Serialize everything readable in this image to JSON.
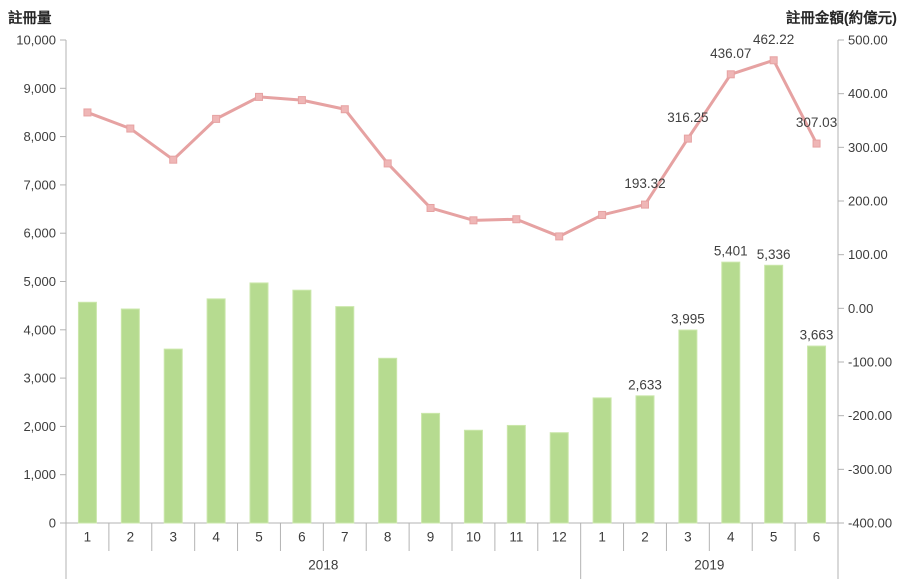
{
  "chart": {
    "left_axis_title": "註冊量",
    "right_axis_title": "註冊金額(約億元)",
    "colors": {
      "bar_fill": "#b6db90",
      "bar_edge": "#cbe7ab",
      "line": "#e6a2a2",
      "marker_fill": "#efb6b6",
      "axis_line": "#b3b3b3",
      "tick_text": "#3d3d3d",
      "data_label_text": "#404040",
      "background": "#ffffff"
    }
  },
  "chart_data": {
    "type": "combo-bar-line",
    "title": "",
    "grid": false,
    "legend": "none",
    "categories": [
      "1",
      "2",
      "3",
      "4",
      "5",
      "6",
      "7",
      "8",
      "9",
      "10",
      "11",
      "12",
      "1",
      "2",
      "3",
      "4",
      "5",
      "6"
    ],
    "year_groups": [
      {
        "label": "2018",
        "start": 0,
        "count": 12
      },
      {
        "label": "2019",
        "start": 12,
        "count": 6
      }
    ],
    "series": [
      {
        "name": "註冊量",
        "type": "bar",
        "axis": "left",
        "values": [
          4570,
          4430,
          3600,
          4640,
          4970,
          4820,
          4480,
          3410,
          2270,
          1920,
          2020,
          1870,
          2590,
          2633,
          3995,
          5401,
          5336,
          3663
        ],
        "data_labels": [
          null,
          null,
          null,
          null,
          null,
          null,
          null,
          null,
          null,
          null,
          null,
          null,
          null,
          "2,633",
          "3,995",
          "5,401",
          "5,336",
          "3,663"
        ]
      },
      {
        "name": "註冊金額(約億元)",
        "type": "line",
        "axis": "right",
        "values": [
          365,
          335,
          277,
          353,
          394,
          388,
          371,
          270,
          187,
          164,
          166,
          134,
          174,
          193.32,
          316.25,
          436.07,
          462.22,
          307.03
        ],
        "data_labels": [
          null,
          null,
          null,
          null,
          null,
          null,
          null,
          null,
          null,
          null,
          null,
          null,
          null,
          "193.32",
          "316.25",
          "436.07",
          "462.22",
          "307.03"
        ]
      }
    ],
    "left_axis": {
      "title": "註冊量",
      "min": 0,
      "max": 10000,
      "step": 1000,
      "tick_labels": [
        "10,000",
        "9,000",
        "8,000",
        "7,000",
        "6,000",
        "5,000",
        "4,000",
        "3,000",
        "2,000",
        "1,000",
        "0"
      ]
    },
    "right_axis": {
      "title": "註冊金額(約億元)",
      "min": -400,
      "max": 500,
      "step": 100,
      "tick_labels": [
        "500.00",
        "400.00",
        "300.00",
        "200.00",
        "100.00",
        "0.00",
        "-100.00",
        "-200.00",
        "-300.00",
        "-400.00"
      ]
    },
    "x_axis": {
      "month_labels": [
        "1",
        "2",
        "3",
        "4",
        "5",
        "6",
        "7",
        "8",
        "9",
        "10",
        "11",
        "12",
        "1",
        "2",
        "3",
        "4",
        "5",
        "6"
      ],
      "year_labels": [
        "2018",
        "2019"
      ]
    }
  }
}
